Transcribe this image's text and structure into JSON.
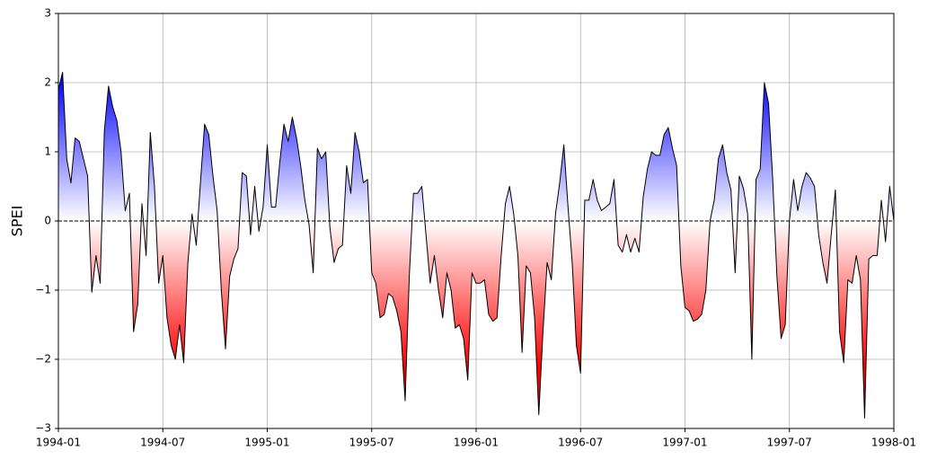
{
  "chart_data": {
    "type": "line",
    "ylabel": "SPEI",
    "x": [
      1994,
      1994.02,
      1994.04,
      1994.06,
      1994.08,
      1994.1,
      1994.12,
      1994.14,
      1994.16,
      1994.18,
      1994.2,
      1994.22,
      1994.24,
      1994.26,
      1994.28,
      1994.3,
      1994.32,
      1994.34,
      1994.36,
      1994.38,
      1994.4,
      1994.42,
      1994.44,
      1994.46,
      1994.48,
      1994.5,
      1994.52,
      1994.54,
      1994.56,
      1994.58,
      1994.6,
      1994.62,
      1994.64,
      1994.66,
      1994.68,
      1994.7,
      1994.72,
      1994.74,
      1994.76,
      1994.78,
      1994.8,
      1994.82,
      1994.84,
      1994.86,
      1994.88,
      1994.9,
      1994.92,
      1994.94,
      1994.96,
      1994.98,
      1995,
      1995.02,
      1995.04,
      1995.06,
      1995.08,
      1995.1,
      1995.12,
      1995.14,
      1995.16,
      1995.18,
      1995.2,
      1995.22,
      1995.24,
      1995.26,
      1995.28,
      1995.3,
      1995.32,
      1995.34,
      1995.36,
      1995.38,
      1995.4,
      1995.42,
      1995.44,
      1995.46,
      1995.48,
      1995.5,
      1995.52,
      1995.54,
      1995.56,
      1995.58,
      1995.6,
      1995.62,
      1995.64,
      1995.66,
      1995.68,
      1995.7,
      1995.72,
      1995.74,
      1995.76,
      1995.78,
      1995.8,
      1995.82,
      1995.84,
      1995.86,
      1995.88,
      1995.9,
      1995.92,
      1995.94,
      1995.96,
      1995.98,
      1996,
      1996.02,
      1996.04,
      1996.06,
      1996.08,
      1996.1,
      1996.12,
      1996.14,
      1996.16,
      1996.18,
      1996.2,
      1996.22,
      1996.24,
      1996.26,
      1996.28,
      1996.3,
      1996.32,
      1996.34,
      1996.36,
      1996.38,
      1996.4,
      1996.42,
      1996.44,
      1996.46,
      1996.48,
      1996.5,
      1996.52,
      1996.54,
      1996.56,
      1996.58,
      1996.6,
      1996.62,
      1996.64,
      1996.66,
      1996.68,
      1996.7,
      1996.72,
      1996.74,
      1996.76,
      1996.78,
      1996.8,
      1996.82,
      1996.84,
      1996.86,
      1996.88,
      1996.9,
      1996.92,
      1996.94,
      1996.96,
      1996.98,
      1997,
      1997.02,
      1997.04,
      1997.06,
      1997.08,
      1997.1,
      1997.12,
      1997.14,
      1997.16,
      1997.18,
      1997.2,
      1997.22,
      1997.24,
      1997.26,
      1997.28,
      1997.3,
      1997.32,
      1997.34,
      1997.36,
      1997.38,
      1997.4,
      1997.42,
      1997.44,
      1997.46,
      1997.48,
      1997.5,
      1997.52,
      1997.54,
      1997.56,
      1997.58,
      1997.6,
      1997.62,
      1997.64,
      1997.66,
      1997.68,
      1997.7,
      1997.72,
      1997.74,
      1997.76,
      1997.78,
      1997.8,
      1997.82,
      1997.84,
      1997.86,
      1997.88,
      1997.9,
      1997.92,
      1997.94,
      1997.96,
      1997.98,
      1998
    ],
    "series": [
      {
        "color": "#000000",
        "positive_color": "#0000ff",
        "negative_color": "#ff0000",
        "values": [
          1.9,
          2.15,
          0.9,
          0.55,
          1.2,
          1.15,
          0.9,
          0.65,
          -1.03,
          -0.5,
          -0.9,
          1.3,
          1.95,
          1.65,
          1.45,
          1.0,
          0.15,
          0.4,
          -1.6,
          -1.2,
          0.25,
          -0.5,
          1.28,
          0.5,
          -0.9,
          -0.5,
          -1.4,
          -1.8,
          -2.0,
          -1.5,
          -2.05,
          -0.6,
          0.1,
          -0.35,
          0.55,
          1.4,
          1.25,
          0.65,
          0.15,
          -1.0,
          -1.85,
          -0.8,
          -0.55,
          -0.4,
          0.7,
          0.65,
          -0.2,
          0.5,
          -0.15,
          0.2,
          1.1,
          0.2,
          0.2,
          0.85,
          1.4,
          1.15,
          1.5,
          1.2,
          0.8,
          0.3,
          -0.05,
          -0.75,
          1.05,
          0.9,
          1.0,
          -0.1,
          -0.6,
          -0.4,
          -0.35,
          0.8,
          0.4,
          1.28,
          1.0,
          0.55,
          0.6,
          -0.75,
          -0.9,
          -1.4,
          -1.35,
          -1.05,
          -1.1,
          -1.3,
          -1.6,
          -2.6,
          -0.8,
          0.4,
          0.4,
          0.5,
          -0.2,
          -0.9,
          -0.5,
          -1.0,
          -1.4,
          -0.75,
          -1.0,
          -1.55,
          -1.5,
          -1.7,
          -2.3,
          -0.75,
          -0.9,
          -0.9,
          -0.85,
          -1.35,
          -1.45,
          -1.4,
          -0.5,
          0.25,
          0.5,
          0.1,
          -0.5,
          -1.9,
          -0.65,
          -0.75,
          -1.4,
          -2.8,
          -1.6,
          -0.6,
          -0.85,
          0.1,
          0.55,
          1.1,
          0.2,
          -0.6,
          -1.8,
          -2.2,
          0.3,
          0.3,
          0.6,
          0.3,
          0.15,
          0.2,
          0.25,
          0.6,
          -0.35,
          -0.45,
          -0.2,
          -0.45,
          -0.25,
          -0.45,
          0.35,
          0.75,
          1.0,
          0.95,
          0.95,
          1.25,
          1.35,
          1.05,
          0.8,
          -0.65,
          -1.25,
          -1.3,
          -1.45,
          -1.42,
          -1.35,
          -1.0,
          0.0,
          0.3,
          0.9,
          1.1,
          0.7,
          0.45,
          -0.75,
          0.65,
          0.47,
          0.1,
          -2.0,
          0.6,
          0.75,
          2.0,
          1.7,
          0.6,
          -0.8,
          -1.7,
          -1.5,
          0.0,
          0.6,
          0.15,
          0.5,
          0.7,
          0.62,
          0.5,
          -0.2,
          -0.6,
          -0.9,
          -0.2,
          0.45,
          -1.6,
          -2.05,
          -0.85,
          -0.9,
          -0.5,
          -0.85,
          -2.85,
          -0.55,
          -0.5,
          -0.5,
          0.3,
          -0.3,
          0.5,
          0.0
        ]
      }
    ],
    "xlim": [
      1994,
      1998
    ],
    "xticks": [
      {
        "value": 1994,
        "label": "1994-01"
      },
      {
        "value": 1994.5,
        "label": "1994-07"
      },
      {
        "value": 1995,
        "label": "1995-01"
      },
      {
        "value": 1995.5,
        "label": "1995-07"
      },
      {
        "value": 1996,
        "label": "1996-01"
      },
      {
        "value": 1996.5,
        "label": "1996-07"
      },
      {
        "value": 1997,
        "label": "1997-01"
      },
      {
        "value": 1997.5,
        "label": "1997-07"
      },
      {
        "value": 1998,
        "label": "1998-01"
      }
    ],
    "ylim": [
      -3,
      3
    ],
    "yticks": [
      {
        "value": -3,
        "label": "−3"
      },
      {
        "value": -2,
        "label": "−2"
      },
      {
        "value": -1,
        "label": "−1"
      },
      0,
      1,
      2,
      3
    ],
    "grid": true,
    "reference_line": 0
  }
}
